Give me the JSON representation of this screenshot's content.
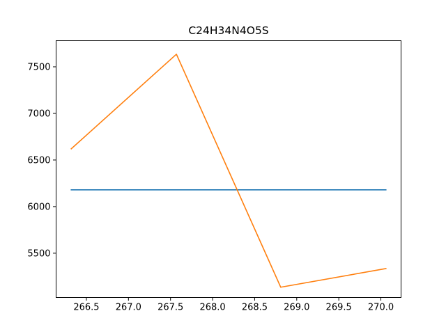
{
  "chart_data": {
    "type": "line",
    "title": "C24H34N4O5S",
    "xlabel": "",
    "ylabel": "",
    "xlim": [
      266.14,
      270.24
    ],
    "ylim": [
      5025,
      7780
    ],
    "grid": false,
    "legend": "none",
    "xticks": [
      266.5,
      267.0,
      267.5,
      268.0,
      268.5,
      269.0,
      269.5,
      270.0
    ],
    "xtick_labels": [
      "266.5",
      "267.0",
      "267.5",
      "268.0",
      "268.5",
      "269.0",
      "269.5",
      "270.0"
    ],
    "yticks": [
      5500,
      6000,
      6500,
      7000,
      7500
    ],
    "ytick_labels": [
      "5500",
      "6000",
      "6500",
      "7000",
      "7500"
    ],
    "series": [
      {
        "color": "#1f77b4",
        "x": [
          266.32,
          270.06
        ],
        "y": [
          6180,
          6180
        ]
      },
      {
        "color": "#ff7f0e",
        "x": [
          266.32,
          267.57,
          268.81,
          270.06
        ],
        "y": [
          6620,
          7635,
          5135,
          5335
        ]
      }
    ]
  }
}
